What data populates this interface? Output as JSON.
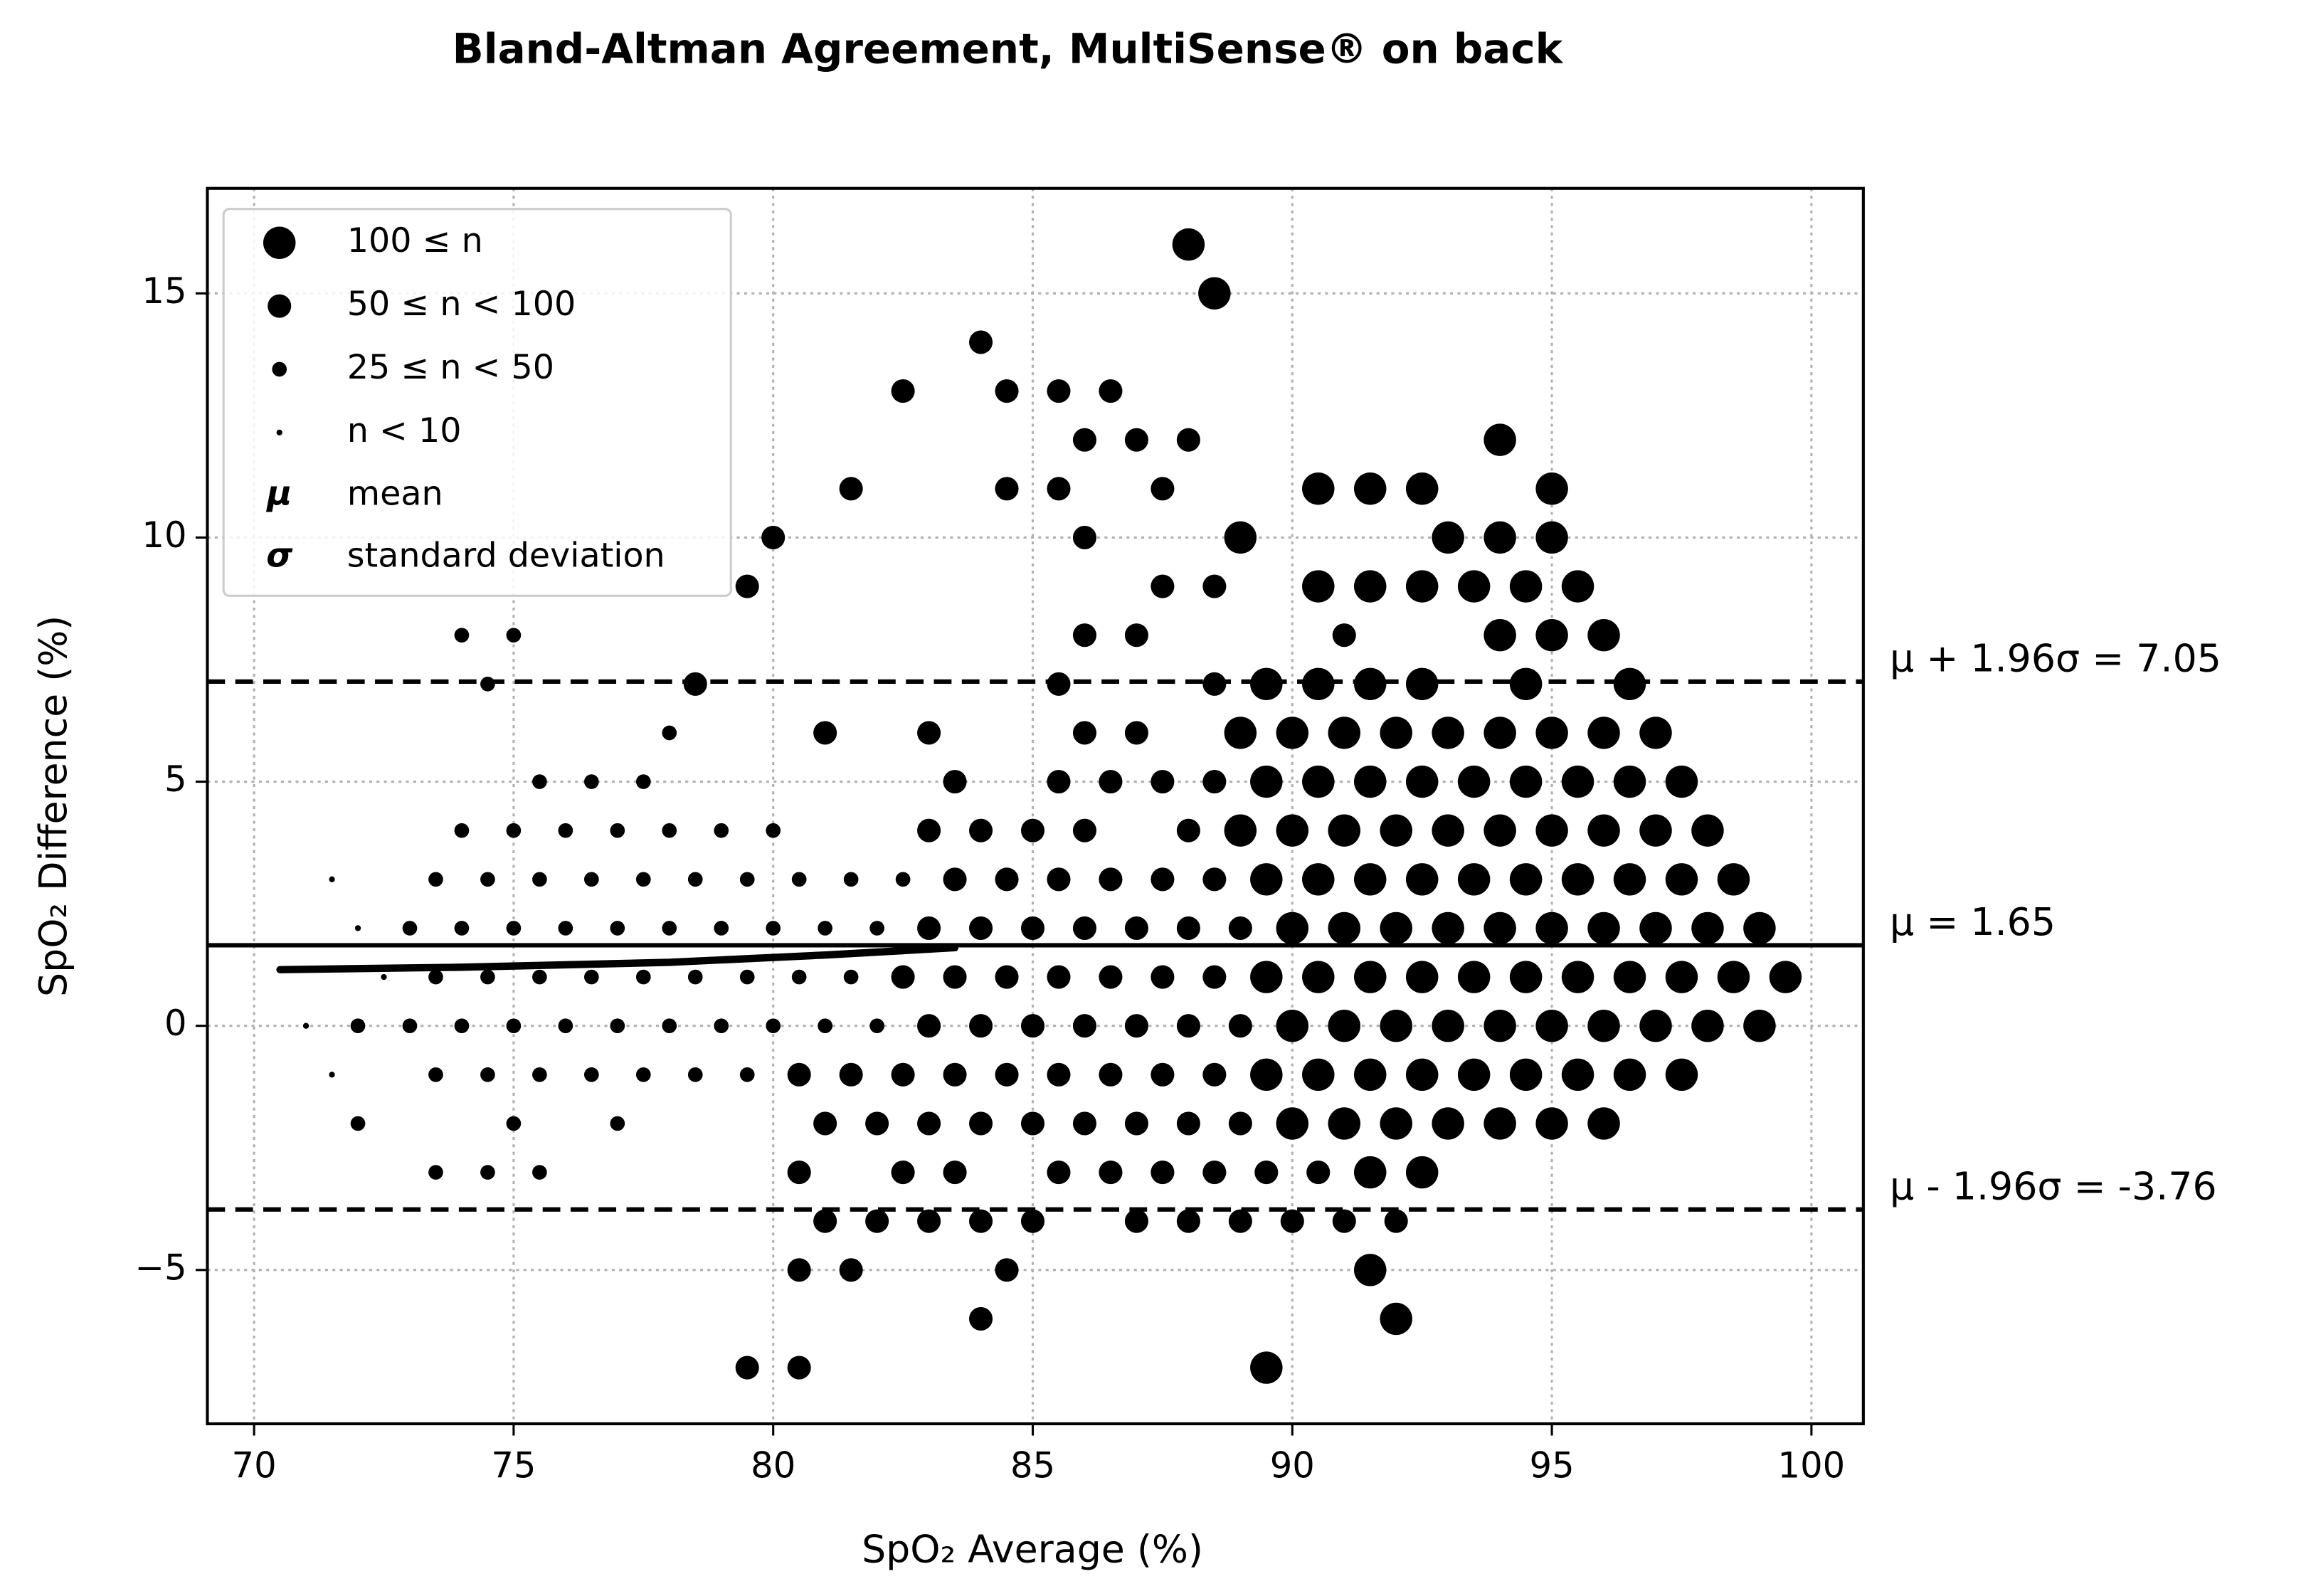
{
  "chart_data": {
    "type": "scatter",
    "title": "Bland-Altman Agreement, MultiSense® on back",
    "x_label": "SpO₂ Average (%)",
    "y_label": "SpO₂ Difference (%)",
    "xlim": [
      69.1,
      101
    ],
    "ylim": [
      -8.15,
      17.15
    ],
    "xticks": [
      70,
      75,
      80,
      85,
      90,
      95,
      100
    ],
    "yticks": [
      {
        "value": -5,
        "label": "−5"
      },
      0,
      5,
      10,
      15
    ],
    "grid": true,
    "legend_position": "upper left",
    "series": [
      {
        "name": "100 ≤ n",
        "color": "#000000",
        "x": [
          88,
          88.5,
          94,
          90.5,
          91.5,
          92.5,
          95,
          89,
          93,
          94,
          95,
          90.5,
          91.5,
          92.5,
          93.5,
          94.5,
          95.5,
          94,
          95,
          96,
          89.5,
          90.5,
          91.5,
          92.5,
          94.5,
          96.5,
          89,
          90,
          91,
          92,
          93,
          94,
          95,
          96,
          97,
          89.5,
          90.5,
          91.5,
          92.5,
          93.5,
          94.5,
          95.5,
          96.5,
          97.5,
          89,
          90,
          91,
          92,
          93,
          94,
          95,
          96,
          97,
          98,
          89.5,
          90.5,
          91.5,
          92.5,
          93.5,
          94.5,
          95.5,
          96.5,
          97.5,
          98.5,
          90,
          91,
          92,
          93,
          94,
          95,
          96,
          97,
          98,
          99,
          89.5,
          90.5,
          91.5,
          92.5,
          93.5,
          94.5,
          95.5,
          96.5,
          97.5,
          98.5,
          99.5,
          90,
          91,
          92,
          93,
          94,
          95,
          96,
          97,
          98,
          99,
          89.5,
          90.5,
          91.5,
          92.5,
          93.5,
          94.5,
          95.5,
          96.5,
          97.5,
          90,
          91,
          92,
          93,
          94,
          95,
          96,
          91.5,
          92.5,
          91.5,
          92,
          89.5
        ],
        "values": [
          16,
          15,
          12,
          11,
          11,
          11,
          11,
          10,
          10,
          10,
          10,
          9,
          9,
          9,
          9,
          9,
          9,
          8,
          8,
          8,
          7,
          7,
          7,
          7,
          7,
          7,
          6,
          6,
          6,
          6,
          6,
          6,
          6,
          6,
          6,
          5,
          5,
          5,
          5,
          5,
          5,
          5,
          5,
          5,
          4,
          4,
          4,
          4,
          4,
          4,
          4,
          4,
          4,
          4,
          3,
          3,
          3,
          3,
          3,
          3,
          3,
          3,
          3,
          3,
          2,
          2,
          2,
          2,
          2,
          2,
          2,
          2,
          2,
          2,
          1,
          1,
          1,
          1,
          1,
          1,
          1,
          1,
          1,
          1,
          1,
          0,
          0,
          0,
          0,
          0,
          0,
          0,
          0,
          0,
          0,
          -1,
          -1,
          -1,
          -1,
          -1,
          -1,
          -1,
          -1,
          -1,
          -2,
          -2,
          -2,
          -2,
          -2,
          -2,
          -2,
          -3,
          -3,
          -5,
          -6,
          -7
        ]
      },
      {
        "name": "50 ≤ n < 100",
        "color": "#000000",
        "x": [
          84,
          82.5,
          84.5,
          85.5,
          86.5,
          86,
          87,
          88,
          81.5,
          84.5,
          85.5,
          87.5,
          80,
          86,
          79.5,
          87.5,
          88.5,
          86,
          87,
          91,
          78.5,
          85.5,
          88.5,
          81,
          83,
          86,
          87,
          83.5,
          85.5,
          86.5,
          87.5,
          88.5,
          83,
          84,
          85,
          86,
          88,
          83.5,
          84.5,
          85.5,
          86.5,
          87.5,
          88.5,
          83,
          84,
          85,
          86,
          87,
          88,
          89,
          82.5,
          83.5,
          84.5,
          85.5,
          86.5,
          87.5,
          88.5,
          83,
          84,
          85,
          86,
          87,
          88,
          89,
          80.5,
          81.5,
          82.5,
          83.5,
          84.5,
          85.5,
          86.5,
          87.5,
          88.5,
          81,
          82,
          83,
          84,
          85,
          86,
          87,
          88,
          89,
          80.5,
          82.5,
          83.5,
          85.5,
          86.5,
          87.5,
          88.5,
          89.5,
          90.5,
          81,
          82,
          83,
          84,
          85,
          87,
          88,
          89,
          90,
          91,
          92,
          80.5,
          81.5,
          84.5,
          84,
          79.5,
          80.5
        ],
        "values": [
          14,
          13,
          13,
          13,
          13,
          12,
          12,
          12,
          11,
          11,
          11,
          11,
          10,
          10,
          9,
          9,
          9,
          8,
          8,
          8,
          7,
          7,
          7,
          6,
          6,
          6,
          6,
          5,
          5,
          5,
          5,
          5,
          4,
          4,
          4,
          4,
          4,
          3,
          3,
          3,
          3,
          3,
          3,
          2,
          2,
          2,
          2,
          2,
          2,
          2,
          1,
          1,
          1,
          1,
          1,
          1,
          1,
          0,
          0,
          0,
          0,
          0,
          0,
          0,
          -1,
          -1,
          -1,
          -1,
          -1,
          -1,
          -1,
          -1,
          -1,
          -2,
          -2,
          -2,
          -2,
          -2,
          -2,
          -2,
          -2,
          -2,
          -3,
          -3,
          -3,
          -3,
          -3,
          -3,
          -3,
          -3,
          -3,
          -4,
          -4,
          -4,
          -4,
          -4,
          -4,
          -4,
          -4,
          -4,
          -4,
          -4,
          -5,
          -5,
          -5,
          -6,
          -7,
          -7
        ]
      },
      {
        "name": "25 ≤ n < 50",
        "color": "#000000",
        "x": [
          74,
          75,
          74.5,
          78,
          75.5,
          76.5,
          77.5,
          74,
          75,
          76,
          77,
          78,
          79,
          80,
          73.5,
          74.5,
          75.5,
          76.5,
          77.5,
          78.5,
          79.5,
          80.5,
          81.5,
          82.5,
          73,
          74,
          75,
          76,
          77,
          78,
          79,
          80,
          81,
          82,
          73.5,
          74.5,
          75.5,
          76.5,
          77.5,
          78.5,
          79.5,
          80.5,
          81.5,
          72,
          73,
          74,
          75,
          76,
          77,
          78,
          79,
          80,
          81,
          82,
          73.5,
          74.5,
          75.5,
          76.5,
          77.5,
          78.5,
          79.5,
          72,
          75,
          77,
          73.5,
          74.5,
          75.5
        ],
        "values": [
          8,
          8,
          7,
          6,
          5,
          5,
          5,
          4,
          4,
          4,
          4,
          4,
          4,
          4,
          3,
          3,
          3,
          3,
          3,
          3,
          3,
          3,
          3,
          3,
          2,
          2,
          2,
          2,
          2,
          2,
          2,
          2,
          2,
          2,
          1,
          1,
          1,
          1,
          1,
          1,
          1,
          1,
          1,
          0,
          0,
          0,
          0,
          0,
          0,
          0,
          0,
          0,
          0,
          0,
          -1,
          -1,
          -1,
          -1,
          -1,
          -1,
          -1,
          -2,
          -2,
          -2,
          -3,
          -3,
          -3
        ]
      },
      {
        "name": "n < 10",
        "color": "#000000",
        "x": [
          71.5,
          72,
          72.5,
          71,
          71.5
        ],
        "values": [
          3,
          2,
          1,
          0,
          -1
        ]
      }
    ],
    "legend_symbols": [
      {
        "symbol": "μ",
        "label": "mean"
      },
      {
        "symbol": "σ",
        "label": "standard deviation"
      }
    ],
    "reference_lines": [
      {
        "value": 7.05,
        "label": "μ + 1.96σ = 7.05",
        "style": "dashed"
      },
      {
        "value": 1.65,
        "label": "μ = 1.65",
        "style": "solid"
      },
      {
        "value": -3.76,
        "label": "μ - 1.96σ = -3.76",
        "style": "dashed"
      }
    ],
    "trend": {
      "x": [
        70.5,
        74,
        78,
        81,
        83.5
      ],
      "values": [
        1.15,
        1.2,
        1.3,
        1.45,
        1.6
      ]
    }
  }
}
